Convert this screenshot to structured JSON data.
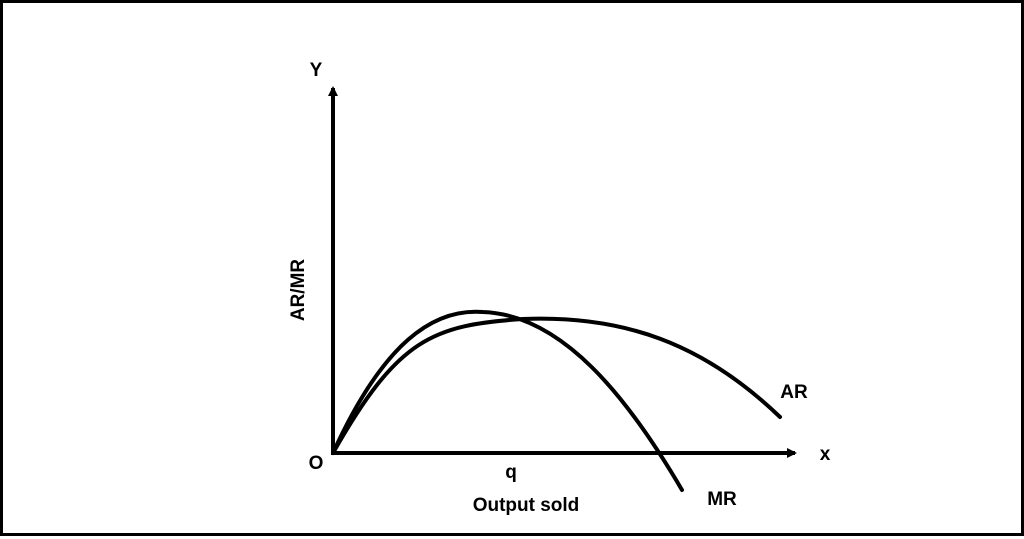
{
  "diagram": {
    "y_axis_letter": "Y",
    "x_axis_letter": "x",
    "origin_label": "O",
    "y_axis_title": "AR/MR",
    "x_tick_label": "q",
    "x_axis_title": "Output sold",
    "curves": {
      "ar_label": "AR",
      "mr_label": "MR"
    }
  },
  "colors": {
    "stroke": "#000000",
    "background": "#ffffff",
    "frame_border": "#000000"
  }
}
